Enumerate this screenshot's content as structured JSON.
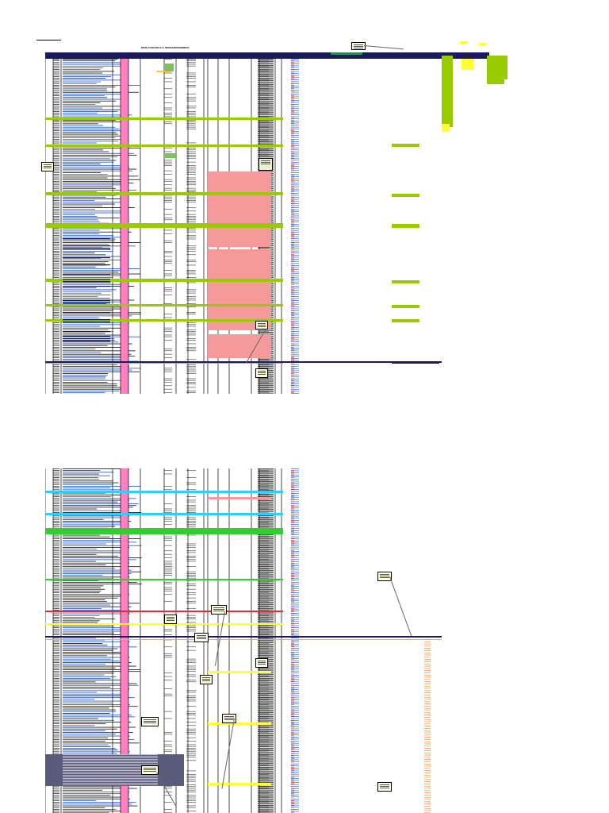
{
  "sheet": {
    "title": "DESE CUIDADE E S. DESMAROSEMBROS"
  },
  "colors": {
    "navy": "#1a1a5e",
    "lime": "#99cc00",
    "pink": "#ff7fbf",
    "salmon": "#f59a9a",
    "yellow": "#ffff33",
    "cyan": "#33ccff",
    "green": "#33cc33",
    "red": "#e03030",
    "gray": "#777777",
    "blue_text": "#3366cc"
  }
}
